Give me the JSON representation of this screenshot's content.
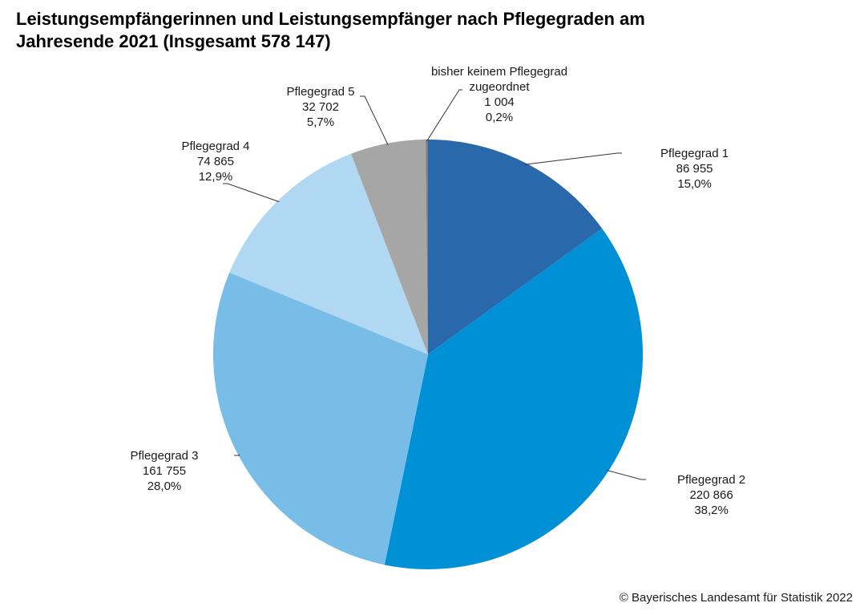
{
  "chart_data": {
    "type": "pie",
    "title": [
      "Leistungsempfängerinnen und Leistungsempfänger nach Pflegegraden am",
      "Jahresende 2021 (Insgesamt 578 147)"
    ],
    "total": 578147,
    "start": "12 o'clock",
    "direction": "clockwise",
    "slices": [
      {
        "label": "Pflegegrad 1",
        "label_lines": [
          "Pflegegrad 1"
        ],
        "value": 86955,
        "value_text": "86 955",
        "percent": 15.0,
        "percent_text": "15,0%",
        "color": "#2969AB"
      },
      {
        "label": "Pflegegrad 2",
        "label_lines": [
          "Pflegegrad 2"
        ],
        "value": 220866,
        "value_text": "220 866",
        "percent": 38.2,
        "percent_text": "38,2%",
        "color": "#0090D6"
      },
      {
        "label": "Pflegegrad 3",
        "label_lines": [
          "Pflegegrad 3"
        ],
        "value": 161755,
        "value_text": "161 755",
        "percent": 28.0,
        "percent_text": "28,0%",
        "color": "#78BDE8"
      },
      {
        "label": "Pflegegrad 4",
        "label_lines": [
          "Pflegegrad 4"
        ],
        "value": 74865,
        "value_text": "74 865",
        "percent": 12.9,
        "percent_text": "12,9%",
        "color": "#B0D8F2"
      },
      {
        "label": "Pflegegrad 5",
        "label_lines": [
          "Pflegegrad 5"
        ],
        "value": 32702,
        "value_text": "32 702",
        "percent": 5.7,
        "percent_text": "5,7%",
        "color": "#A6A6A6"
      },
      {
        "label": "bisher keinem Pflegegrad zugeordnet",
        "label_lines": [
          "bisher keinem Pflegegrad",
          "zugeordnet"
        ],
        "value": 1004,
        "value_text": "1 004",
        "percent": 0.2,
        "percent_text": "0,2%",
        "color": "#7F7F7F"
      }
    ]
  },
  "footer": {
    "credit": "© Bayerisches Landesamt für Statistik 2022"
  }
}
